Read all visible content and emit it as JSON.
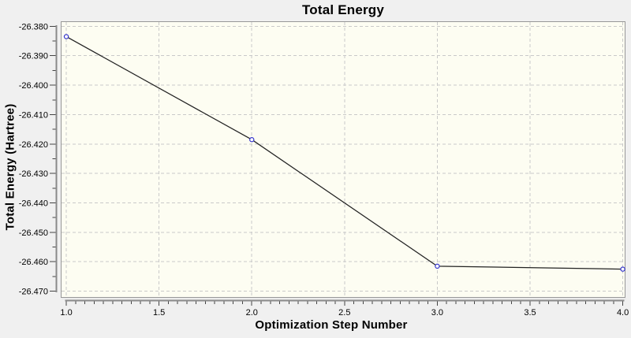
{
  "chart_data": {
    "type": "line",
    "title": "Total Energy",
    "xlabel": "Optimization Step Number",
    "ylabel": "Total Energy (Hartree)",
    "x": [
      1.0,
      2.0,
      3.0,
      4.0
    ],
    "y": [
      -26.3835,
      -26.4185,
      -26.4615,
      -26.4625
    ],
    "series_name": "Total Energy",
    "xlim": [
      0.97,
      4.0145
    ],
    "ylim": [
      -26.47225,
      -26.37829
    ],
    "x_major_ticks": [
      1.0,
      1.5,
      2.0,
      2.5,
      3.0,
      3.5,
      4.0
    ],
    "x_tick_labels": [
      "1.0",
      "1.5",
      "2.0",
      "2.5",
      "3.0",
      "3.5",
      "4.0"
    ],
    "x_minor_step": 0.05,
    "y_major_ticks": [
      -26.38,
      -26.39,
      -26.4,
      -26.41,
      -26.42,
      -26.43,
      -26.44,
      -26.45,
      -26.46,
      -26.47
    ],
    "y_tick_labels": [
      "-26.380",
      "-26.390",
      "-26.400",
      "-26.410",
      "-26.420",
      "-26.430",
      "-26.440",
      "-26.450",
      "-26.460",
      "-26.470"
    ],
    "y_minor_step": 0.005,
    "grid": {
      "style": "dashed",
      "major_only": true
    },
    "legend": "none",
    "marker_shape": "open-circle",
    "colors": {
      "outer_bg": "#f0f0f0",
      "canvas_bg": "#fdfdf2",
      "grid": "#c9c9c9",
      "line": "#222222",
      "marker": "#3333cc",
      "marker_fill": "#ffffff",
      "axis_backbone": "#8a8a8a",
      "tick": "#444444",
      "frame": "#979797",
      "text": "#000000"
    }
  }
}
